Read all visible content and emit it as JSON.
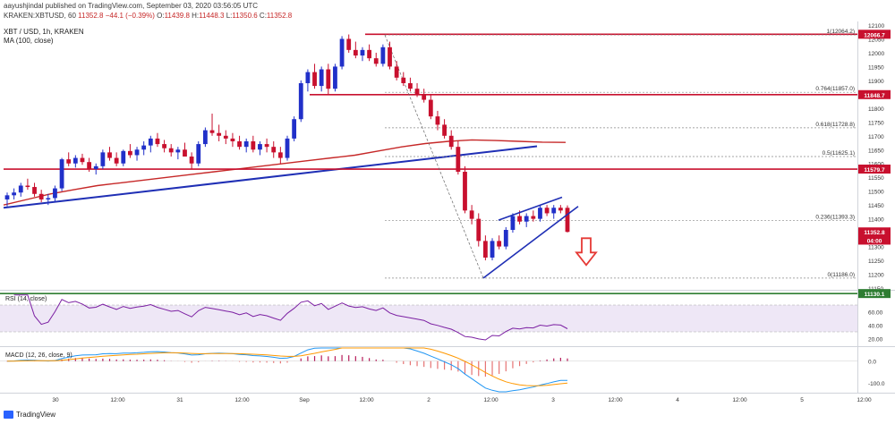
{
  "header": {
    "published_line": "aayushjindal published on TradingView.com, September 03, 2020 03:56:05 UTC",
    "symbol_line": "KRAKEN:XBTUSD, 60",
    "close": "11352.8",
    "change": "−44.1 (−0.39%)",
    "open_label": "O:",
    "open": "11439.8",
    "high_label": "H:",
    "high": "11448.3",
    "low_label": "L:",
    "low": "11350.6",
    "close_label": "C:",
    "close_value": "11352.8",
    "instrument_title": "XBT / USD, 1h, KRAKEN",
    "ma_label": "MA (100, close)"
  },
  "colors": {
    "up": "#2130c9",
    "down": "#c8102e",
    "ma": "#c62828",
    "trendline": "#1f2fb5",
    "rsi": "#7b1fa2",
    "macd": "#2196f3",
    "signal": "#ff9800",
    "hist": "#e57373",
    "green_line": "#2e7d32",
    "arrow": "#e53935"
  },
  "chart_data": [
    {
      "type": "candlestick",
      "title": "XBT / USD, 1h, KRAKEN",
      "y_ticks": [
        12100,
        12050,
        12000,
        11950,
        11900,
        11850,
        11800,
        11750,
        11700,
        11650,
        11600,
        11550,
        11500,
        11450,
        11400,
        11350,
        11300,
        11250,
        11200,
        11150
      ],
      "ylim": [
        11150,
        12100
      ],
      "x_ticks": [
        "30",
        "12:00",
        "31",
        "12:00",
        "Sep",
        "12:00",
        "2",
        "12:00",
        "3",
        "12:00",
        "4",
        "12:00",
        "5",
        "12:00"
      ],
      "candles": [
        [
          11470,
          11495,
          11445,
          11485
        ],
        [
          11485,
          11510,
          11470,
          11495
        ],
        [
          11495,
          11530,
          11480,
          11520
        ],
        [
          11520,
          11545,
          11505,
          11515
        ],
        [
          11515,
          11530,
          11480,
          11490
        ],
        [
          11490,
          11505,
          11460,
          11470
        ],
        [
          11470,
          11490,
          11450,
          11475
        ],
        [
          11475,
          11520,
          11460,
          11510
        ],
        [
          11510,
          11620,
          11500,
          11615
        ],
        [
          11615,
          11640,
          11590,
          11600
        ],
        [
          11600,
          11630,
          11585,
          11620
        ],
        [
          11620,
          11635,
          11595,
          11605
        ],
        [
          11605,
          11620,
          11570,
          11580
        ],
        [
          11580,
          11600,
          11560,
          11590
        ],
        [
          11590,
          11650,
          11580,
          11640
        ],
        [
          11640,
          11660,
          11610,
          11620
        ],
        [
          11620,
          11640,
          11590,
          11600
        ],
        [
          11600,
          11650,
          11590,
          11645
        ],
        [
          11645,
          11670,
          11620,
          11630
        ],
        [
          11630,
          11660,
          11610,
          11650
        ],
        [
          11650,
          11680,
          11630,
          11665
        ],
        [
          11665,
          11700,
          11640,
          11690
        ],
        [
          11690,
          11710,
          11660,
          11670
        ],
        [
          11670,
          11685,
          11640,
          11655
        ],
        [
          11655,
          11670,
          11625,
          11640
        ],
        [
          11640,
          11660,
          11615,
          11650
        ],
        [
          11650,
          11675,
          11630,
          11625
        ],
        [
          11625,
          11640,
          11580,
          11600
        ],
        [
          11600,
          11680,
          11590,
          11670
        ],
        [
          11670,
          11730,
          11660,
          11720
        ],
        [
          11720,
          11780,
          11700,
          11710
        ],
        [
          11710,
          11740,
          11680,
          11700
        ],
        [
          11700,
          11720,
          11670,
          11690
        ],
        [
          11690,
          11710,
          11660,
          11680
        ],
        [
          11680,
          11700,
          11650,
          11660
        ],
        [
          11660,
          11690,
          11640,
          11680
        ],
        [
          11680,
          11700,
          11640,
          11650
        ],
        [
          11650,
          11680,
          11630,
          11670
        ],
        [
          11670,
          11690,
          11640,
          11660
        ],
        [
          11660,
          11680,
          11620,
          11640
        ],
        [
          11640,
          11660,
          11600,
          11620
        ],
        [
          11620,
          11700,
          11610,
          11690
        ],
        [
          11690,
          11770,
          11680,
          11760
        ],
        [
          11760,
          11900,
          11750,
          11890
        ],
        [
          11890,
          11940,
          11860,
          11930
        ],
        [
          11930,
          11960,
          11870,
          11880
        ],
        [
          11880,
          11950,
          11860,
          11940
        ],
        [
          11940,
          11960,
          11850,
          11870
        ],
        [
          11870,
          11960,
          11860,
          11950
        ],
        [
          11950,
          12060,
          11940,
          12050
        ],
        [
          12050,
          12066,
          12000,
          12010
        ],
        [
          12010,
          12040,
          11980,
          11990
        ],
        [
          11990,
          12020,
          11970,
          12010
        ],
        [
          12010,
          12030,
          11970,
          11980
        ],
        [
          11980,
          12000,
          11950,
          11960
        ],
        [
          11960,
          12030,
          11950,
          12020
        ],
        [
          12020,
          12040,
          11940,
          11950
        ],
        [
          11950,
          11970,
          11900,
          11910
        ],
        [
          11910,
          11930,
          11880,
          11890
        ],
        [
          11890,
          11910,
          11860,
          11870
        ],
        [
          11870,
          11890,
          11840,
          11850
        ],
        [
          11850,
          11870,
          11820,
          11830
        ],
        [
          11830,
          11850,
          11760,
          11770
        ],
        [
          11770,
          11790,
          11720,
          11740
        ],
        [
          11740,
          11760,
          11690,
          11700
        ],
        [
          11700,
          11720,
          11650,
          11660
        ],
        [
          11660,
          11680,
          11560,
          11570
        ],
        [
          11570,
          11590,
          11420,
          11430
        ],
        [
          11430,
          11450,
          11380,
          11400
        ],
        [
          11400,
          11420,
          11300,
          11320
        ],
        [
          11320,
          11340,
          11250,
          11260
        ],
        [
          11260,
          11330,
          11250,
          11320
        ],
        [
          11320,
          11340,
          11290,
          11300
        ],
        [
          11300,
          11370,
          11290,
          11360
        ],
        [
          11360,
          11420,
          11350,
          11410
        ],
        [
          11410,
          11430,
          11380,
          11390
        ],
        [
          11390,
          11420,
          11370,
          11410
        ],
        [
          11410,
          11430,
          11390,
          11400
        ],
        [
          11400,
          11450,
          11390,
          11440
        ],
        [
          11440,
          11450,
          11410,
          11420
        ],
        [
          11420,
          11450,
          11400,
          11440
        ],
        [
          11440,
          11450,
          11420,
          11430
        ],
        [
          11439.8,
          11448.3,
          11350.6,
          11352.8
        ]
      ],
      "ma_series": [
        11450,
        11470,
        11490,
        11505,
        11520,
        11530,
        11540,
        11550,
        11560,
        11570,
        11580,
        11590,
        11600,
        11610,
        11620,
        11630,
        11645,
        11660,
        11672,
        11680,
        11685,
        11683,
        11680,
        11677,
        11676
      ],
      "levels": [
        {
          "name": "fib_1",
          "label": "1(12064.2)",
          "value": 12064.2
        },
        {
          "name": "fib_0764",
          "label": "0.764(11857.0)",
          "value": 11857.0
        },
        {
          "name": "fib_0618",
          "label": "0.618(11728.8)",
          "value": 11728.8
        },
        {
          "name": "fib_05",
          "label": "0.5(11625.1)",
          "value": 11625.1
        },
        {
          "name": "fib_0236",
          "label": "0.236(11393.3)",
          "value": 11393.3
        },
        {
          "name": "fib_0",
          "label": "0(11186.0)",
          "value": 11186.0
        }
      ],
      "price_badges": [
        {
          "label": "12066.7",
          "value": 12066.7,
          "color": "#c8102e"
        },
        {
          "label": "11848.7",
          "value": 11848.7,
          "color": "#c8102e"
        },
        {
          "label": "11579.7",
          "value": 11579.7,
          "color": "#c8102e"
        },
        {
          "label": "11352.8",
          "value": 11352.8,
          "color": "#c8102e"
        },
        {
          "label": "04:00",
          "value": 11323,
          "color": "#c8102e"
        },
        {
          "label": "11130.1",
          "value": 11130.1,
          "color": "#2e7d32"
        }
      ]
    },
    {
      "type": "line",
      "title": "RSI (14, close)",
      "ylim": [
        10,
        90
      ],
      "y_ticks": [
        60,
        40,
        20
      ],
      "band": [
        30,
        70
      ]
    },
    {
      "type": "line",
      "title": "MACD (12, 26, close, 9)",
      "ylim": [
        -140,
        60
      ],
      "y_ticks": [
        0.0,
        -100.0
      ]
    }
  ],
  "footer": {
    "logo_text": "TradingView"
  }
}
